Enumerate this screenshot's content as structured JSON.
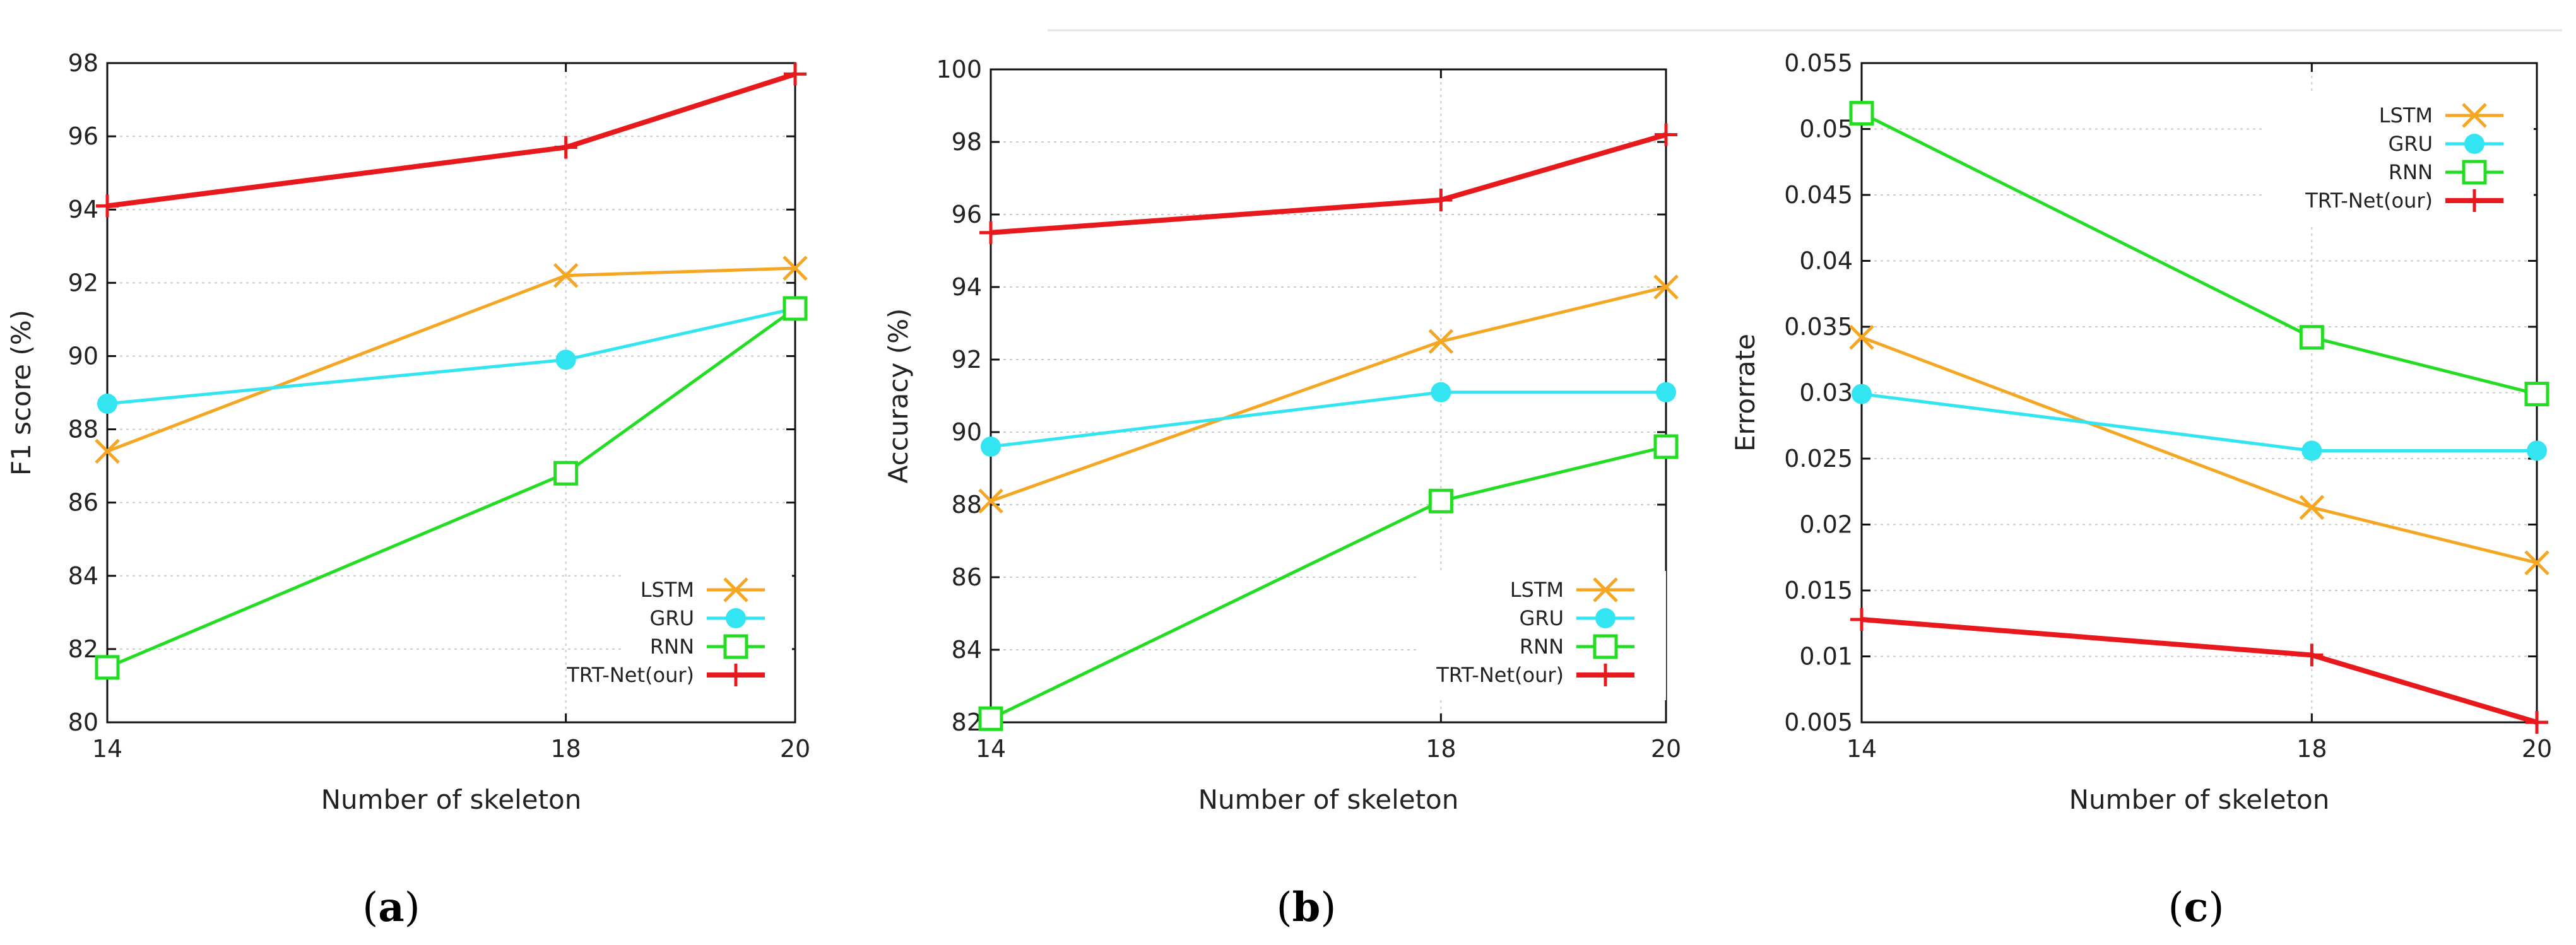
{
  "chart_data": [
    {
      "type": "line",
      "panel": "a",
      "caption_letter": "a",
      "xlabel": "Number of skeleton",
      "ylabel": "F1 score (%)",
      "categories": [
        14,
        18,
        20
      ],
      "xticks": [
        "14",
        "18",
        "20"
      ],
      "ylim": [
        80,
        98
      ],
      "yticks": [
        80,
        82,
        84,
        86,
        88,
        90,
        92,
        94,
        96,
        98
      ],
      "ytick_labels": [
        "80",
        "82",
        "84",
        "86",
        "88",
        "90",
        "92",
        "94",
        "96",
        "98"
      ],
      "grid": true,
      "legend_position": "bottom-right",
      "series": [
        {
          "name": "LSTM",
          "marker": "x",
          "color": "#f5a623",
          "values": [
            87.4,
            92.2,
            92.4
          ]
        },
        {
          "name": "GRU",
          "marker": "circle",
          "color": "#33e5f0",
          "values": [
            88.7,
            89.9,
            91.3
          ]
        },
        {
          "name": "RNN",
          "marker": "square",
          "color": "#22dd22",
          "values": [
            81.5,
            86.8,
            91.3
          ]
        },
        {
          "name": "TRT-Net(our)",
          "marker": "plus",
          "color": "#e8191c",
          "values": [
            94.1,
            95.7,
            97.7
          ]
        }
      ]
    },
    {
      "type": "line",
      "panel": "b",
      "caption_letter": "b",
      "xlabel": "Number of skeleton",
      "ylabel": "Accuracy (%)",
      "categories": [
        14,
        18,
        20
      ],
      "xticks": [
        "14",
        "18",
        "20"
      ],
      "ylim": [
        82,
        100
      ],
      "yticks": [
        82,
        84,
        86,
        88,
        90,
        92,
        94,
        96,
        98,
        100
      ],
      "ytick_labels": [
        "82",
        "84",
        "86",
        "88",
        "90",
        "92",
        "94",
        "96",
        "98",
        "100"
      ],
      "grid": true,
      "legend_position": "bottom-right",
      "series": [
        {
          "name": "LSTM",
          "marker": "x",
          "color": "#f5a623",
          "values": [
            88.1,
            92.5,
            94.0
          ]
        },
        {
          "name": "GRU",
          "marker": "circle",
          "color": "#33e5f0",
          "values": [
            89.6,
            91.1,
            91.1
          ]
        },
        {
          "name": "RNN",
          "marker": "square",
          "color": "#22dd22",
          "values": [
            82.1,
            88.1,
            89.6
          ]
        },
        {
          "name": "TRT-Net(our)",
          "marker": "plus",
          "color": "#e8191c",
          "values": [
            95.5,
            96.4,
            98.2
          ]
        }
      ]
    },
    {
      "type": "line",
      "panel": "c",
      "caption_letter": "c",
      "xlabel": "Number of skeleton",
      "ylabel": "Errorrate",
      "categories": [
        14,
        18,
        20
      ],
      "xticks": [
        "14",
        "18",
        "20"
      ],
      "ylim": [
        0.005,
        0.055
      ],
      "yticks": [
        0.005,
        0.01,
        0.015,
        0.02,
        0.025,
        0.03,
        0.035,
        0.04,
        0.045,
        0.05,
        0.055
      ],
      "ytick_labels": [
        "0.005",
        "0.01",
        "0.015",
        "0.02",
        "0.025",
        "0.03",
        "0.035",
        "0.04",
        "0.045",
        "0.05",
        "0.055"
      ],
      "grid": true,
      "legend_position": "top-right",
      "series": [
        {
          "name": "LSTM",
          "marker": "x",
          "color": "#f5a623",
          "values": [
            0.0342,
            0.0213,
            0.0171
          ]
        },
        {
          "name": "GRU",
          "marker": "circle",
          "color": "#33e5f0",
          "values": [
            0.0299,
            0.0256,
            0.0256
          ]
        },
        {
          "name": "RNN",
          "marker": "square",
          "color": "#22dd22",
          "values": [
            0.0512,
            0.0342,
            0.0299
          ]
        },
        {
          "name": "TRT-Net(our)",
          "marker": "plus",
          "color": "#e8191c",
          "values": [
            0.0128,
            0.0101,
            0.005
          ]
        }
      ]
    }
  ]
}
